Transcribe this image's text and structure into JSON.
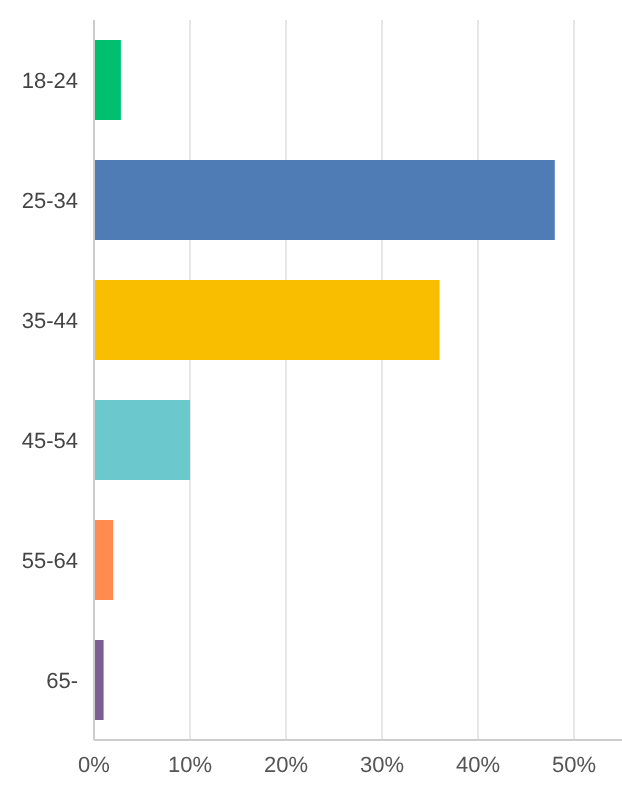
{
  "chart_data": {
    "type": "bar",
    "orientation": "horizontal",
    "categories": [
      "18-24",
      "25-34",
      "35-44",
      "45-54",
      "55-64",
      "65-"
    ],
    "values": [
      2.8,
      48,
      36,
      10,
      2,
      1
    ],
    "colors": [
      "#00bf6f",
      "#507cb6",
      "#f9be00",
      "#6bc8cd",
      "#ff8b4f",
      "#7d5e90"
    ],
    "xlim": [
      0,
      55
    ],
    "xticks": [
      {
        "value": 0,
        "label": "0%"
      },
      {
        "value": 10,
        "label": "10%"
      },
      {
        "value": 20,
        "label": "20%"
      },
      {
        "value": 30,
        "label": "30%"
      },
      {
        "value": 40,
        "label": "40%"
      },
      {
        "value": 50,
        "label": "50%"
      }
    ],
    "grid": "x"
  }
}
